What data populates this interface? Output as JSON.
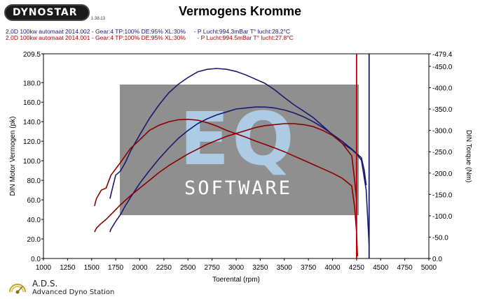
{
  "header": {
    "logo_text": "DYNOSTAR",
    "logo_version": "1.38.13",
    "title": "Vermogens Kromme",
    "run1": "2,0D 100kw automaat 2014.002 - Gear:4 TP:100% DE:95% XL:30%     - P Lucht:994.3mBar T° lucht:28.2°C",
    "run2": "2,0D 100kw automaat 2014.001 - Gear:4 TP:100% DE:95% XL:30%       - P Lucht:994.5mBar T° lucht:27.8°C"
  },
  "watermark": {
    "top_text": "EQ",
    "bottom_text": "SOFTWARE"
  },
  "footer": {
    "name": "A.D.S.",
    "subtitle": "Advanced Dyno Station"
  },
  "colors": {
    "run1": "#1a1a6e",
    "run2": "#8b0000",
    "rpm_marker_red": "#c00000"
  },
  "chart_data": {
    "type": "line",
    "title": "Vermogens Kromme",
    "xlabel": "Toerental (rpm)",
    "ylabel": "DIN Motor Vermogen (pk)",
    "y2label": "DIN Torque (Nm)",
    "xlim": [
      1000,
      5000
    ],
    "ylim": [
      0,
      209.5
    ],
    "y2lim": [
      0,
      479.4
    ],
    "x_ticks": [
      1000,
      1250,
      1500,
      1750,
      2000,
      2250,
      2500,
      2750,
      3000,
      3250,
      3500,
      3750,
      4000,
      4250,
      4500,
      4750,
      5000
    ],
    "y_ticks": [
      0,
      20,
      40,
      60,
      80,
      100,
      120,
      140,
      160,
      180,
      209.5
    ],
    "y_tick_labels": [
      "0.0",
      "20.0",
      "40.0",
      "60.0",
      "80.0",
      "100.0",
      "120.0",
      "140.0",
      "160.0",
      "180.0",
      "209.5"
    ],
    "y2_ticks": [
      0,
      50,
      100,
      150,
      200,
      250,
      300,
      350,
      400,
      450,
      479.4
    ],
    "y2_tick_labels": [
      "0.0",
      "-50.0",
      "-100.0",
      "-150.0",
      "-200.0",
      "-250.0",
      "-300.0",
      "-350.0",
      "-400.0",
      "-450.0",
      "-479.4"
    ],
    "grid": false,
    "series": [
      {
        "name": "2,0D 100kw automaat 2014.002",
        "quantity": "power",
        "axis": "left",
        "color": "#1a1a6e",
        "x": [
          1690,
          1700,
          1750,
          1800,
          1850,
          1900,
          2000,
          2100,
          2200,
          2300,
          2400,
          2500,
          2600,
          2700,
          2800,
          2900,
          3000,
          3100,
          3200,
          3300,
          3400,
          3500,
          3600,
          3700,
          3800,
          3900,
          4000,
          4100,
          4200,
          4300,
          4330,
          4350
        ],
        "y": [
          27,
          30,
          38,
          45,
          54,
          62,
          77,
          90,
          102,
          113,
          123,
          131,
          138,
          143,
          147,
          150,
          153,
          154,
          155,
          155,
          154,
          152,
          149,
          145,
          140,
          134,
          127,
          120,
          112,
          103,
          90,
          75
        ]
      },
      {
        "name": "2,0D 100kw automaat 2014.002",
        "quantity": "torque",
        "axis": "right",
        "color": "#1a1a6e",
        "x": [
          1690,
          1700,
          1750,
          1800,
          1850,
          1900,
          1950,
          2000,
          2100,
          2200,
          2300,
          2400,
          2500,
          2600,
          2700,
          2800,
          2900,
          3000,
          3100,
          3200,
          3300,
          3400,
          3500,
          3600,
          3700,
          3800,
          3900,
          4000,
          4100,
          4200,
          4250,
          4300,
          4350,
          4380
        ],
        "y": [
          140,
          150,
          195,
          205,
          225,
          250,
          270,
          290,
          328,
          360,
          388,
          408,
          424,
          437,
          443,
          445,
          443,
          438,
          430,
          420,
          410,
          395,
          377,
          360,
          345,
          330,
          310,
          290,
          270,
          255,
          245,
          230,
          160,
          30
        ]
      },
      {
        "name": "2,0D 100kw automaat 2014.001",
        "quantity": "power",
        "axis": "left",
        "color": "#8b0000",
        "x": [
          1530,
          1550,
          1600,
          1650,
          1700,
          1800,
          1900,
          2000,
          2100,
          2200,
          2300,
          2400,
          2500,
          2600,
          2700,
          2800,
          2900,
          3000,
          3100,
          3200,
          3300,
          3400,
          3500,
          3600,
          3700,
          3800,
          3900,
          4000,
          4100,
          4200,
          4230,
          4250
        ],
        "y": [
          27,
          31,
          36,
          40,
          45,
          55,
          64,
          72,
          80,
          88,
          95,
          101,
          107,
          112,
          117,
          121,
          125,
          128,
          131,
          134,
          136,
          137,
          138,
          138,
          137,
          135,
          131,
          126,
          118,
          105,
          80,
          60
        ]
      },
      {
        "name": "2,0D 100kw automaat 2014.001",
        "quantity": "torque",
        "axis": "right",
        "color": "#8b0000",
        "x": [
          1530,
          1550,
          1600,
          1650,
          1700,
          1800,
          1900,
          2000,
          2100,
          2200,
          2300,
          2400,
          2500,
          2600,
          2700,
          2800,
          2900,
          3000,
          3100,
          3200,
          3300,
          3400,
          3500,
          3600,
          3700,
          3800,
          3900,
          4000,
          4100,
          4200,
          4230,
          4250,
          4260
        ],
        "y": [
          123,
          140,
          160,
          165,
          195,
          225,
          257,
          278,
          300,
          312,
          320,
          325,
          326,
          324,
          318,
          310,
          300,
          292,
          284,
          275,
          267,
          259,
          250,
          240,
          230,
          220,
          210,
          200,
          188,
          170,
          120,
          60,
          5
        ]
      }
    ],
    "markers": [
      {
        "x": 4250,
        "color": "#c00000"
      },
      {
        "x": 4380,
        "color": "#1a1a6e"
      }
    ]
  }
}
